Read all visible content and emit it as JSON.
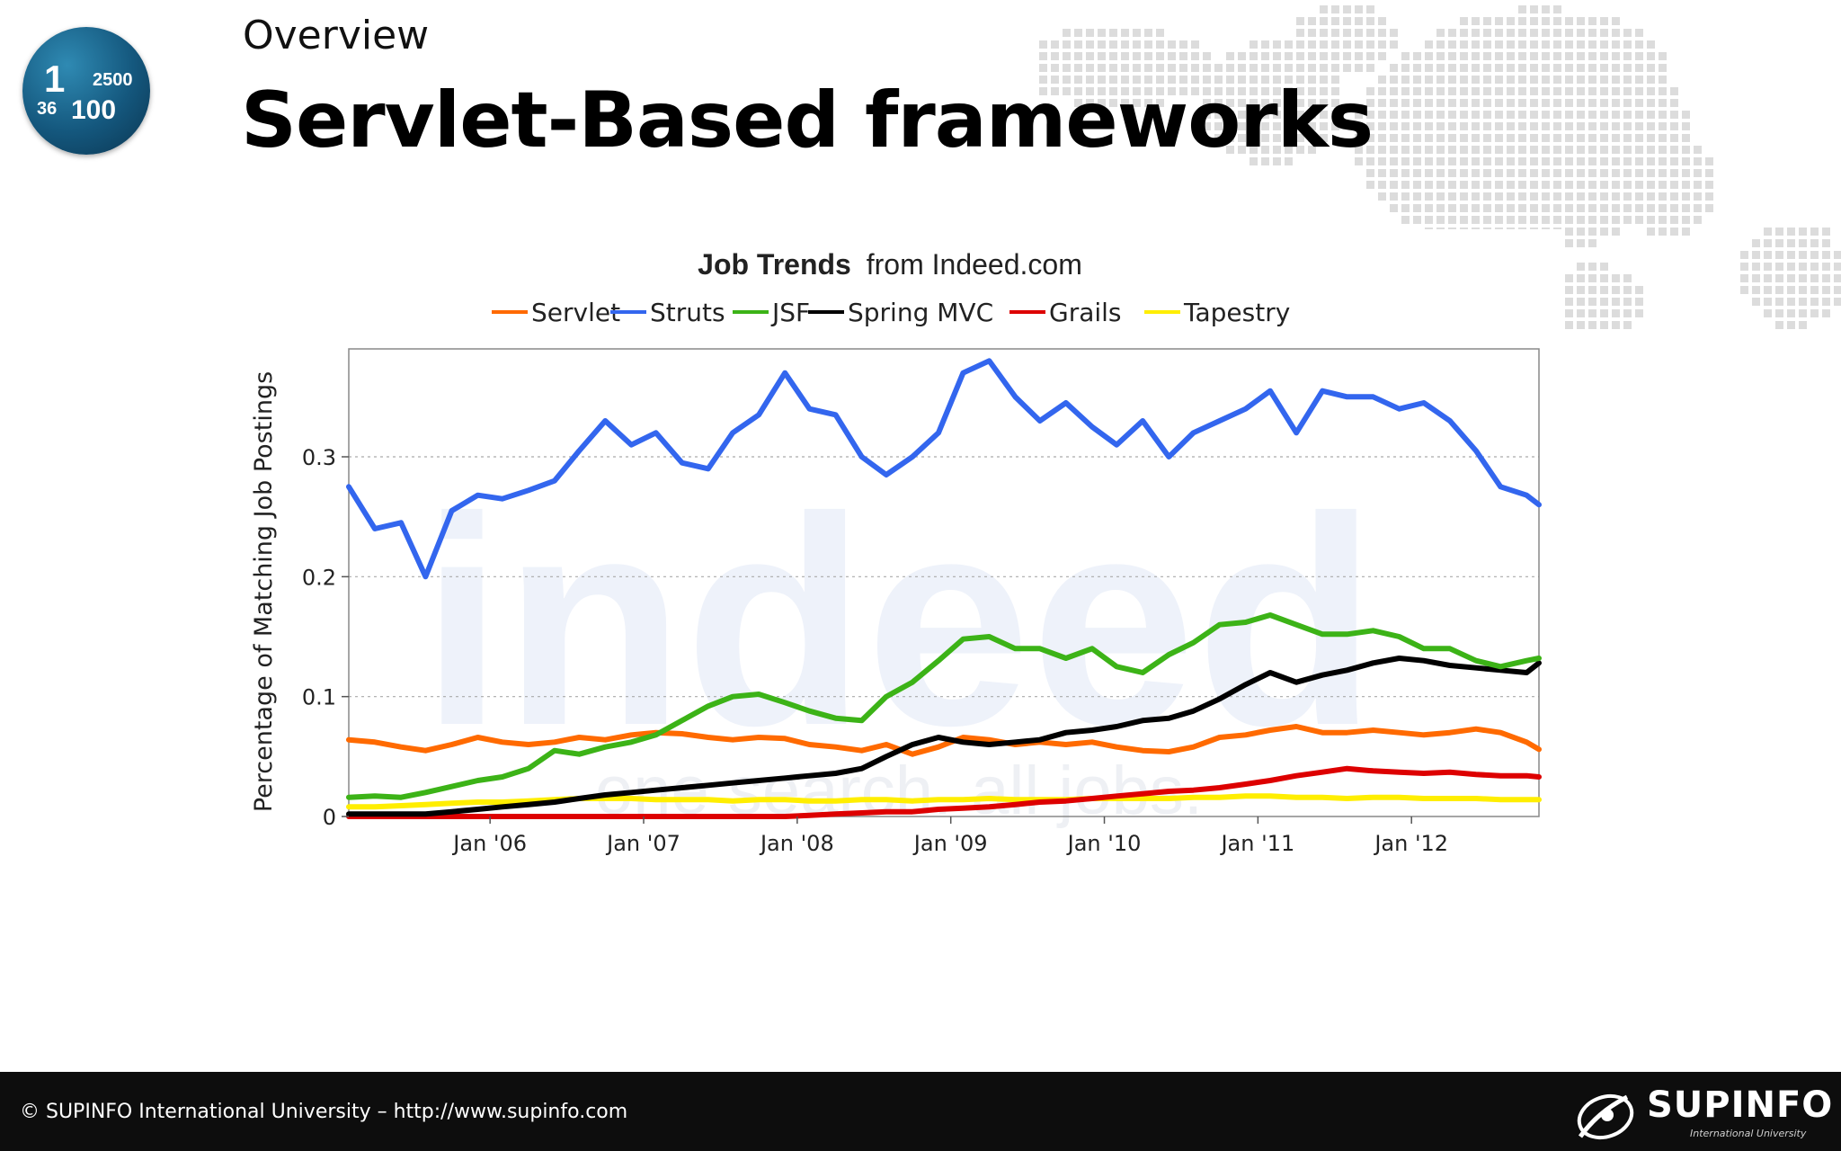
{
  "slide": {
    "overline": "Overview",
    "title": "Servlet-Based frameworks",
    "badge": {
      "n1": "1",
      "n2": "2500",
      "n3": "36",
      "n4": "100"
    }
  },
  "footer": {
    "copyright": "© SUPINFO International University – http://www.supinfo.com",
    "logo_text": "SUPINFO",
    "logo_subtext": "International University"
  },
  "chart_data": {
    "type": "line",
    "title_bold": "Job Trends",
    "title_rest": "from Indeed.com",
    "ylabel": "Percentage of Matching Job Postings",
    "xlabel": "",
    "x_ticks": [
      "Jan '06",
      "Jan '07",
      "Jan '08",
      "Jan '09",
      "Jan '10",
      "Jan '11",
      "Jan '12"
    ],
    "y_ticks": [
      "0",
      "0.1",
      "0.2",
      "0.3"
    ],
    "xlim": [
      2005.08,
      2012.83
    ],
    "ylim": [
      0,
      0.39
    ],
    "grid": "horizontal",
    "legend_position": "top",
    "watermark": {
      "main": "indeed",
      "tagline": "one search. all jobs."
    },
    "x": [
      2005.08,
      2005.25,
      2005.42,
      2005.58,
      2005.75,
      2005.92,
      2006.08,
      2006.25,
      2006.42,
      2006.58,
      2006.75,
      2006.92,
      2007.08,
      2007.25,
      2007.42,
      2007.58,
      2007.75,
      2007.92,
      2008.08,
      2008.25,
      2008.42,
      2008.58,
      2008.75,
      2008.92,
      2009.08,
      2009.25,
      2009.42,
      2009.58,
      2009.75,
      2009.92,
      2010.08,
      2010.25,
      2010.42,
      2010.58,
      2010.75,
      2010.92,
      2011.08,
      2011.25,
      2011.42,
      2011.58,
      2011.75,
      2011.92,
      2012.08,
      2012.25,
      2012.42,
      2012.58,
      2012.75,
      2012.83
    ],
    "series": [
      {
        "name": "Servlet",
        "color": "#ff6a00",
        "values": [
          0.064,
          0.062,
          0.058,
          0.055,
          0.06,
          0.066,
          0.062,
          0.06,
          0.062,
          0.066,
          0.064,
          0.068,
          0.07,
          0.069,
          0.066,
          0.064,
          0.066,
          0.065,
          0.06,
          0.058,
          0.055,
          0.06,
          0.052,
          0.058,
          0.066,
          0.064,
          0.06,
          0.062,
          0.06,
          0.062,
          0.058,
          0.055,
          0.054,
          0.058,
          0.066,
          0.068,
          0.072,
          0.075,
          0.07,
          0.07,
          0.072,
          0.07,
          0.068,
          0.07,
          0.073,
          0.07,
          0.062,
          0.056
        ]
      },
      {
        "name": "Struts",
        "color": "#3366ee",
        "values": [
          0.275,
          0.24,
          0.245,
          0.2,
          0.255,
          0.268,
          0.265,
          0.272,
          0.28,
          0.305,
          0.33,
          0.31,
          0.32,
          0.295,
          0.29,
          0.32,
          0.335,
          0.37,
          0.34,
          0.335,
          0.3,
          0.285,
          0.3,
          0.32,
          0.37,
          0.38,
          0.35,
          0.33,
          0.345,
          0.325,
          0.31,
          0.33,
          0.3,
          0.32,
          0.33,
          0.34,
          0.355,
          0.32,
          0.355,
          0.35,
          0.35,
          0.34,
          0.345,
          0.33,
          0.305,
          0.275,
          0.268,
          0.26
        ]
      },
      {
        "name": "JSF",
        "color": "#3cb317",
        "values": [
          0.016,
          0.017,
          0.016,
          0.02,
          0.025,
          0.03,
          0.033,
          0.04,
          0.055,
          0.052,
          0.058,
          0.062,
          0.068,
          0.08,
          0.092,
          0.1,
          0.102,
          0.095,
          0.088,
          0.082,
          0.08,
          0.1,
          0.112,
          0.13,
          0.148,
          0.15,
          0.14,
          0.14,
          0.132,
          0.14,
          0.125,
          0.12,
          0.135,
          0.145,
          0.16,
          0.162,
          0.168,
          0.16,
          0.152,
          0.152,
          0.155,
          0.15,
          0.14,
          0.14,
          0.13,
          0.125,
          0.13,
          0.132
        ]
      },
      {
        "name": "Spring MVC",
        "color": "#000000",
        "values": [
          0.002,
          0.002,
          0.002,
          0.002,
          0.004,
          0.006,
          0.008,
          0.01,
          0.012,
          0.015,
          0.018,
          0.02,
          0.022,
          0.024,
          0.026,
          0.028,
          0.03,
          0.032,
          0.034,
          0.036,
          0.04,
          0.05,
          0.06,
          0.066,
          0.062,
          0.06,
          0.062,
          0.064,
          0.07,
          0.072,
          0.075,
          0.08,
          0.082,
          0.088,
          0.098,
          0.11,
          0.12,
          0.112,
          0.118,
          0.122,
          0.128,
          0.132,
          0.13,
          0.126,
          0.124,
          0.122,
          0.12,
          0.128
        ]
      },
      {
        "name": "Grails",
        "color": "#dd0000",
        "values": [
          0,
          0,
          0,
          0,
          0,
          0,
          0,
          0,
          0,
          0,
          0,
          0,
          0,
          0,
          0,
          0,
          0,
          0,
          0.001,
          0.002,
          0.003,
          0.004,
          0.004,
          0.006,
          0.007,
          0.008,
          0.01,
          0.012,
          0.013,
          0.015,
          0.017,
          0.019,
          0.021,
          0.022,
          0.024,
          0.027,
          0.03,
          0.034,
          0.037,
          0.04,
          0.038,
          0.037,
          0.036,
          0.037,
          0.035,
          0.034,
          0.034,
          0.033
        ]
      },
      {
        "name": "Tapestry",
        "color": "#ffee00",
        "values": [
          0.008,
          0.008,
          0.009,
          0.01,
          0.011,
          0.012,
          0.012,
          0.013,
          0.014,
          0.015,
          0.015,
          0.015,
          0.014,
          0.014,
          0.014,
          0.013,
          0.014,
          0.014,
          0.013,
          0.013,
          0.014,
          0.014,
          0.013,
          0.014,
          0.014,
          0.015,
          0.014,
          0.014,
          0.014,
          0.015,
          0.015,
          0.015,
          0.015,
          0.016,
          0.016,
          0.017,
          0.017,
          0.016,
          0.016,
          0.015,
          0.016,
          0.016,
          0.015,
          0.015,
          0.015,
          0.014,
          0.014,
          0.014
        ]
      }
    ]
  }
}
